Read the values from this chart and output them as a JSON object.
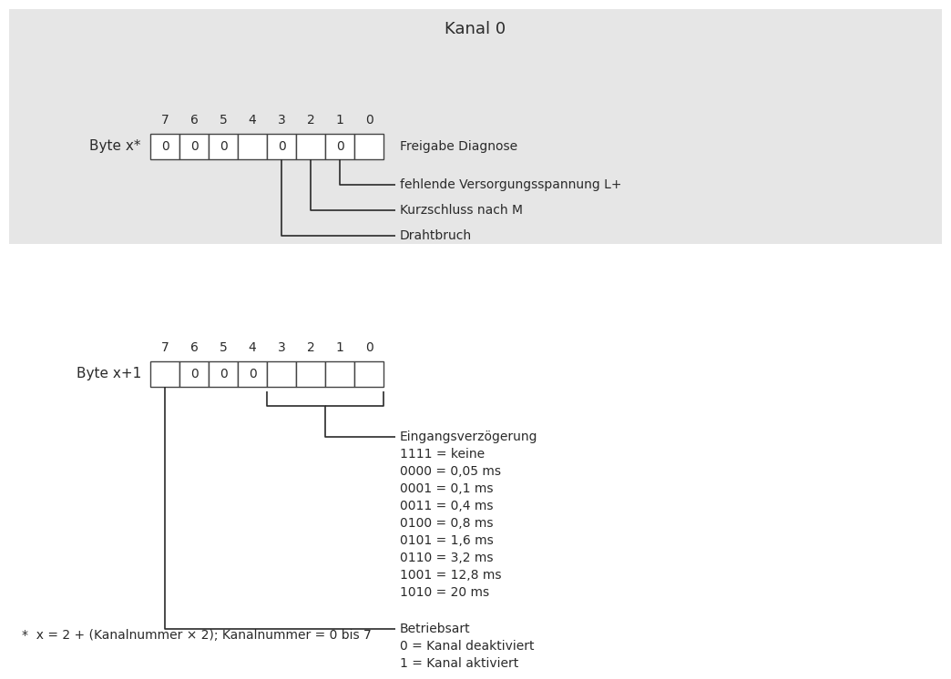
{
  "title": "Kanal 0",
  "title_fontsize": 13,
  "body_fontsize": 11,
  "small_fontsize": 10,
  "bg_color_top": "#e6e6e6",
  "bg_color_bottom": "#ffffff",
  "text_color": "#2a2a2a",
  "box_fill": "#ffffff",
  "box_edge": "#444444",
  "byte_x_label": "Byte x*",
  "byte_x1_label": "Byte x+1",
  "footnote": "*  x = 2 + (Kanalnummer × 2); Kanalnummer = 0 bis 7",
  "bit_labels": [
    "7",
    "6",
    "5",
    "4",
    "3",
    "2",
    "1",
    "0"
  ],
  "byte_x_values": [
    "0",
    "0",
    "0",
    "",
    "0",
    "",
    "0",
    ""
  ],
  "byte_x1_values": [
    "",
    "0",
    "0",
    "0",
    "",
    "",
    "",
    ""
  ],
  "annot_top": [
    "Freigabe Diagnose",
    "fehlende Versorgungsspannung L+",
    "Kurzschluss nach M",
    "Drahtbruch"
  ],
  "annot_eingv": [
    "Eingangsverzögerung",
    "1111 = keine",
    "0000 = 0,05 ms",
    "0001 = 0,1 ms",
    "0011 = 0,4 ms",
    "0100 = 0,8 ms",
    "0101 = 1,6 ms",
    "0110 = 3,2 ms",
    "1001 = 12,8 ms",
    "1010 = 20 ms"
  ],
  "annot_betr": [
    "Betriebsart",
    "0 = Kanal deaktiviert",
    "1 = Kanal aktiviert"
  ]
}
